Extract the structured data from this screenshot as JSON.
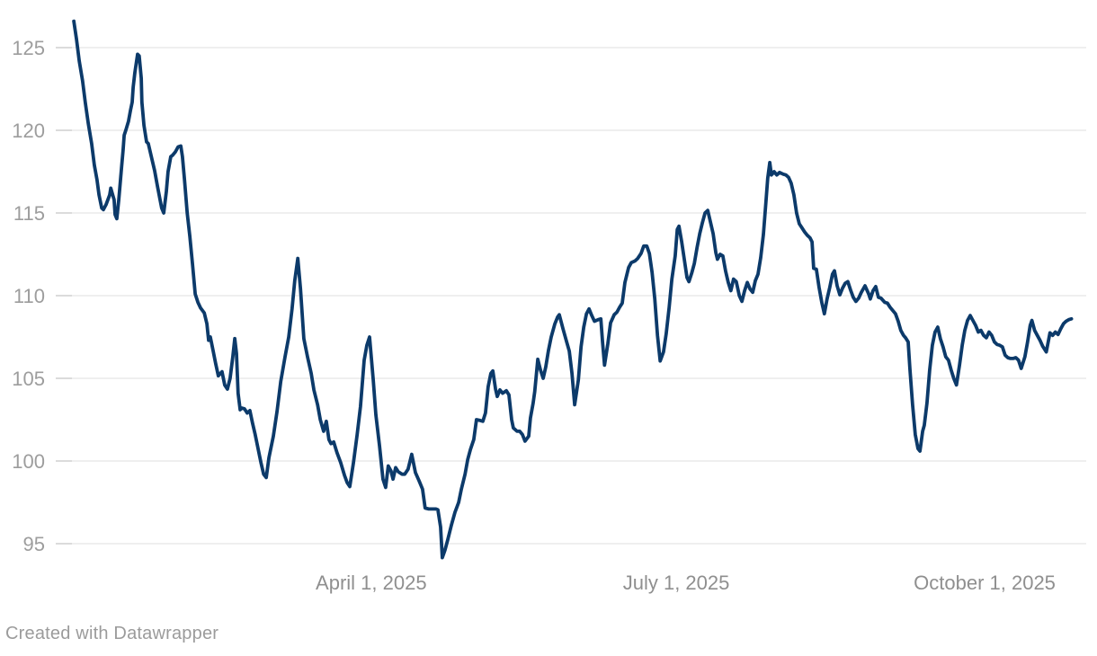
{
  "page": {
    "background": "#ffffff"
  },
  "attribution": {
    "text": "Created with Datawrapper"
  },
  "chart_data": {
    "type": "line",
    "title": "",
    "xlabel": "",
    "ylabel": "",
    "x_unit": "days_since_2025-01-01",
    "x_range_days": [
      0,
      301
    ],
    "ylim": [
      92.2,
      127.5
    ],
    "grid": true,
    "legend": "none",
    "line_color": "#0c3a6a",
    "grid_color": "#e5e5e5",
    "tick_color": "#c9c9c9",
    "y_label_color": "#9d9d9d",
    "x_label_color": "#8f8f8f",
    "y_ticks": [
      95,
      100,
      105,
      110,
      115,
      120,
      125
    ],
    "x_ticks": [
      {
        "d": 90,
        "label": "April 1, 2025"
      },
      {
        "d": 181,
        "label": "July 1, 2025"
      },
      {
        "d": 273,
        "label": "October 1, 2025"
      }
    ],
    "points": [
      [
        1.3,
        126.6
      ],
      [
        2.1,
        125.5
      ],
      [
        2.9,
        124.2
      ],
      [
        3.9,
        123.0
      ],
      [
        4.7,
        121.7
      ],
      [
        5.6,
        120.4
      ],
      [
        6.6,
        119.2
      ],
      [
        7.4,
        117.9
      ],
      [
        8.2,
        117.0
      ],
      [
        8.8,
        116.1
      ],
      [
        9.6,
        115.3
      ],
      [
        10.1,
        115.2
      ],
      [
        10.9,
        115.5
      ],
      [
        12.0,
        116.1
      ],
      [
        12.3,
        116.5
      ],
      [
        13.3,
        115.8
      ],
      [
        13.6,
        114.9
      ],
      [
        14.1,
        114.65
      ],
      [
        14.7,
        115.8
      ],
      [
        15.5,
        117.7
      ],
      [
        16.0,
        118.8
      ],
      [
        16.3,
        119.7
      ],
      [
        16.8,
        120.0
      ],
      [
        17.6,
        120.55
      ],
      [
        18.2,
        121.2
      ],
      [
        18.7,
        121.7
      ],
      [
        19.0,
        122.6
      ],
      [
        19.5,
        123.5
      ],
      [
        20.3,
        124.6
      ],
      [
        20.8,
        124.5
      ],
      [
        21.4,
        123.15
      ],
      [
        21.6,
        121.7
      ],
      [
        22.2,
        120.3
      ],
      [
        23.0,
        119.3
      ],
      [
        23.5,
        119.2
      ],
      [
        24.3,
        118.5
      ],
      [
        25.4,
        117.55
      ],
      [
        26.2,
        116.65
      ],
      [
        27.0,
        115.8
      ],
      [
        27.5,
        115.3
      ],
      [
        28.1,
        115.0
      ],
      [
        28.9,
        116.3
      ],
      [
        29.4,
        117.5
      ],
      [
        30.2,
        118.4
      ],
      [
        30.8,
        118.5
      ],
      [
        31.6,
        118.7
      ],
      [
        32.4,
        119.0
      ],
      [
        33.2,
        119.05
      ],
      [
        33.7,
        118.4
      ],
      [
        34.3,
        117.0
      ],
      [
        35.1,
        115.0
      ],
      [
        35.9,
        113.6
      ],
      [
        36.7,
        111.9
      ],
      [
        37.5,
        110.1
      ],
      [
        38.3,
        109.6
      ],
      [
        39.1,
        109.25
      ],
      [
        40.2,
        108.95
      ],
      [
        41.0,
        108.3
      ],
      [
        41.5,
        107.3
      ],
      [
        42.0,
        107.5
      ],
      [
        42.8,
        106.7
      ],
      [
        43.6,
        105.9
      ],
      [
        44.4,
        105.15
      ],
      [
        45.5,
        105.4
      ],
      [
        46.3,
        104.6
      ],
      [
        47.1,
        104.35
      ],
      [
        47.9,
        105.0
      ],
      [
        48.7,
        106.3
      ],
      [
        49.3,
        107.4
      ],
      [
        49.8,
        106.5
      ],
      [
        50.3,
        104.1
      ],
      [
        50.9,
        103.1
      ],
      [
        51.4,
        103.2
      ],
      [
        52.2,
        103.15
      ],
      [
        53.0,
        102.9
      ],
      [
        53.8,
        103.05
      ],
      [
        54.6,
        102.3
      ],
      [
        55.4,
        101.6
      ],
      [
        56.2,
        100.8
      ],
      [
        57.1,
        99.9
      ],
      [
        57.9,
        99.2
      ],
      [
        58.7,
        99.0
      ],
      [
        59.5,
        100.2
      ],
      [
        60.8,
        101.5
      ],
      [
        61.9,
        103.0
      ],
      [
        63.0,
        104.8
      ],
      [
        64.3,
        106.3
      ],
      [
        65.4,
        107.5
      ],
      [
        66.4,
        109.2
      ],
      [
        67.2,
        110.9
      ],
      [
        68.1,
        112.25
      ],
      [
        68.9,
        110.4
      ],
      [
        69.9,
        107.4
      ],
      [
        71.0,
        106.3
      ],
      [
        72.1,
        105.3
      ],
      [
        72.9,
        104.3
      ],
      [
        74.0,
        103.4
      ],
      [
        74.8,
        102.5
      ],
      [
        75.8,
        101.8
      ],
      [
        76.6,
        102.4
      ],
      [
        77.4,
        101.3
      ],
      [
        78.0,
        101.05
      ],
      [
        78.8,
        101.15
      ],
      [
        79.8,
        100.5
      ],
      [
        80.9,
        99.9
      ],
      [
        82.0,
        99.15
      ],
      [
        82.8,
        98.7
      ],
      [
        83.6,
        98.45
      ],
      [
        84.7,
        99.9
      ],
      [
        85.8,
        101.6
      ],
      [
        86.8,
        103.3
      ],
      [
        87.9,
        106.1
      ],
      [
        88.7,
        107.0
      ],
      [
        89.5,
        107.5
      ],
      [
        90.6,
        104.9
      ],
      [
        91.4,
        102.8
      ],
      [
        92.5,
        100.9
      ],
      [
        93.5,
        98.9
      ],
      [
        94.3,
        98.4
      ],
      [
        95.1,
        99.7
      ],
      [
        95.9,
        99.4
      ],
      [
        96.5,
        98.9
      ],
      [
        97.3,
        99.6
      ],
      [
        98.1,
        99.35
      ],
      [
        99.2,
        99.2
      ],
      [
        100.0,
        99.2
      ],
      [
        101.0,
        99.5
      ],
      [
        102.1,
        100.4
      ],
      [
        103.2,
        99.3
      ],
      [
        104.3,
        98.8
      ],
      [
        105.3,
        98.3
      ],
      [
        106.1,
        97.15
      ],
      [
        107.2,
        97.1
      ],
      [
        108.3,
        97.1
      ],
      [
        109.3,
        97.1
      ],
      [
        109.9,
        97.05
      ],
      [
        110.7,
        96.0
      ],
      [
        111.2,
        94.15
      ],
      [
        112.0,
        94.6
      ],
      [
        112.8,
        95.2
      ],
      [
        113.9,
        96.1
      ],
      [
        115.0,
        96.9
      ],
      [
        116.1,
        97.5
      ],
      [
        116.9,
        98.3
      ],
      [
        118.0,
        99.2
      ],
      [
        118.8,
        100.1
      ],
      [
        119.6,
        100.7
      ],
      [
        120.6,
        101.3
      ],
      [
        121.4,
        102.5
      ],
      [
        122.5,
        102.45
      ],
      [
        123.3,
        102.4
      ],
      [
        124.1,
        102.9
      ],
      [
        124.9,
        104.5
      ],
      [
        125.7,
        105.3
      ],
      [
        126.3,
        105.45
      ],
      [
        127.1,
        104.35
      ],
      [
        127.6,
        103.9
      ],
      [
        128.4,
        104.3
      ],
      [
        129.2,
        104.1
      ],
      [
        130.3,
        104.25
      ],
      [
        131.1,
        104.0
      ],
      [
        131.9,
        102.5
      ],
      [
        132.4,
        102.0
      ],
      [
        133.5,
        101.8
      ],
      [
        134.3,
        101.8
      ],
      [
        135.1,
        101.6
      ],
      [
        135.9,
        101.2
      ],
      [
        137.0,
        101.5
      ],
      [
        137.5,
        102.6
      ],
      [
        138.3,
        103.5
      ],
      [
        138.8,
        104.2
      ],
      [
        139.7,
        106.15
      ],
      [
        140.5,
        105.5
      ],
      [
        141.3,
        105.0
      ],
      [
        142.1,
        105.7
      ],
      [
        142.9,
        106.7
      ],
      [
        143.7,
        107.5
      ],
      [
        144.8,
        108.3
      ],
      [
        145.6,
        108.7
      ],
      [
        146.1,
        108.85
      ],
      [
        147.2,
        108.0
      ],
      [
        148.3,
        107.2
      ],
      [
        149.1,
        106.65
      ],
      [
        149.9,
        105.3
      ],
      [
        150.7,
        103.4
      ],
      [
        151.8,
        104.9
      ],
      [
        152.6,
        106.9
      ],
      [
        153.4,
        108.1
      ],
      [
        154.2,
        108.9
      ],
      [
        155.0,
        109.2
      ],
      [
        155.8,
        108.8
      ],
      [
        156.6,
        108.45
      ],
      [
        157.7,
        108.55
      ],
      [
        158.5,
        108.6
      ],
      [
        159.0,
        107.2
      ],
      [
        159.6,
        105.8
      ],
      [
        160.6,
        107.1
      ],
      [
        161.4,
        108.35
      ],
      [
        162.5,
        108.85
      ],
      [
        163.3,
        109.0
      ],
      [
        164.1,
        109.3
      ],
      [
        164.9,
        109.55
      ],
      [
        165.7,
        110.8
      ],
      [
        166.8,
        111.7
      ],
      [
        167.6,
        112.0
      ],
      [
        168.7,
        112.1
      ],
      [
        169.5,
        112.25
      ],
      [
        170.5,
        112.55
      ],
      [
        171.3,
        113.0
      ],
      [
        172.2,
        113.0
      ],
      [
        173.0,
        112.55
      ],
      [
        173.8,
        111.4
      ],
      [
        174.6,
        109.8
      ],
      [
        175.4,
        107.6
      ],
      [
        176.2,
        106.05
      ],
      [
        177.2,
        106.6
      ],
      [
        178.0,
        107.7
      ],
      [
        178.9,
        109.3
      ],
      [
        179.7,
        111.0
      ],
      [
        180.7,
        112.4
      ],
      [
        181.3,
        114.0
      ],
      [
        181.8,
        114.2
      ],
      [
        182.6,
        113.3
      ],
      [
        183.4,
        112.2
      ],
      [
        184.2,
        111.1
      ],
      [
        184.8,
        110.85
      ],
      [
        185.6,
        111.35
      ],
      [
        186.4,
        111.95
      ],
      [
        187.2,
        112.9
      ],
      [
        188.0,
        113.75
      ],
      [
        188.8,
        114.4
      ],
      [
        189.6,
        115.0
      ],
      [
        190.4,
        115.15
      ],
      [
        191.2,
        114.45
      ],
      [
        192.0,
        113.75
      ],
      [
        192.8,
        112.6
      ],
      [
        193.3,
        112.2
      ],
      [
        194.1,
        112.5
      ],
      [
        194.9,
        112.4
      ],
      [
        195.7,
        111.5
      ],
      [
        196.5,
        110.8
      ],
      [
        197.3,
        110.3
      ],
      [
        198.1,
        111.0
      ],
      [
        198.9,
        110.85
      ],
      [
        199.8,
        110.0
      ],
      [
        200.6,
        109.65
      ],
      [
        201.4,
        110.3
      ],
      [
        202.2,
        110.8
      ],
      [
        203.0,
        110.4
      ],
      [
        203.8,
        110.2
      ],
      [
        204.6,
        110.9
      ],
      [
        205.4,
        111.3
      ],
      [
        206.2,
        112.3
      ],
      [
        207.0,
        113.7
      ],
      [
        207.8,
        115.8
      ],
      [
        208.3,
        117.1
      ],
      [
        208.9,
        118.05
      ],
      [
        209.4,
        117.3
      ],
      [
        210.2,
        117.5
      ],
      [
        211.0,
        117.3
      ],
      [
        211.8,
        117.45
      ],
      [
        212.9,
        117.35
      ],
      [
        213.7,
        117.3
      ],
      [
        214.5,
        117.15
      ],
      [
        215.3,
        116.8
      ],
      [
        216.1,
        116.1
      ],
      [
        216.9,
        115.0
      ],
      [
        217.7,
        114.35
      ],
      [
        218.5,
        114.1
      ],
      [
        219.3,
        113.85
      ],
      [
        220.1,
        113.65
      ],
      [
        220.9,
        113.5
      ],
      [
        221.5,
        113.25
      ],
      [
        222.0,
        111.65
      ],
      [
        222.8,
        111.6
      ],
      [
        223.6,
        110.5
      ],
      [
        224.4,
        109.6
      ],
      [
        225.2,
        108.9
      ],
      [
        226.0,
        109.8
      ],
      [
        226.8,
        110.5
      ],
      [
        227.6,
        111.3
      ],
      [
        228.2,
        111.5
      ],
      [
        229.0,
        110.6
      ],
      [
        229.8,
        110.05
      ],
      [
        230.6,
        110.45
      ],
      [
        231.4,
        110.75
      ],
      [
        232.2,
        110.85
      ],
      [
        233.0,
        110.35
      ],
      [
        233.8,
        109.9
      ],
      [
        234.6,
        109.65
      ],
      [
        235.4,
        109.85
      ],
      [
        236.2,
        110.2
      ],
      [
        237.3,
        110.6
      ],
      [
        238.4,
        110.1
      ],
      [
        238.9,
        109.8
      ],
      [
        239.7,
        110.3
      ],
      [
        240.5,
        110.55
      ],
      [
        241.3,
        109.9
      ],
      [
        242.1,
        109.85
      ],
      [
        243.2,
        109.6
      ],
      [
        244.0,
        109.55
      ],
      [
        244.8,
        109.3
      ],
      [
        245.6,
        109.1
      ],
      [
        246.4,
        108.9
      ],
      [
        247.2,
        108.45
      ],
      [
        248.0,
        107.9
      ],
      [
        248.8,
        107.6
      ],
      [
        249.4,
        107.45
      ],
      [
        250.2,
        107.2
      ],
      [
        250.7,
        105.6
      ],
      [
        251.5,
        103.4
      ],
      [
        252.3,
        101.6
      ],
      [
        253.1,
        100.75
      ],
      [
        253.7,
        100.6
      ],
      [
        254.5,
        101.8
      ],
      [
        255.0,
        102.15
      ],
      [
        255.8,
        103.5
      ],
      [
        256.6,
        105.5
      ],
      [
        257.4,
        107.0
      ],
      [
        258.2,
        107.8
      ],
      [
        259.0,
        108.1
      ],
      [
        259.8,
        107.4
      ],
      [
        260.6,
        106.9
      ],
      [
        261.4,
        106.3
      ],
      [
        262.2,
        106.1
      ],
      [
        263.0,
        105.5
      ],
      [
        263.8,
        105.0
      ],
      [
        264.6,
        104.6
      ],
      [
        265.5,
        105.8
      ],
      [
        266.3,
        107.0
      ],
      [
        267.1,
        107.9
      ],
      [
        267.9,
        108.5
      ],
      [
        268.7,
        108.8
      ],
      [
        269.5,
        108.5
      ],
      [
        270.3,
        108.2
      ],
      [
        271.1,
        107.8
      ],
      [
        271.9,
        107.9
      ],
      [
        272.7,
        107.6
      ],
      [
        273.5,
        107.45
      ],
      [
        274.3,
        107.8
      ],
      [
        275.1,
        107.6
      ],
      [
        275.9,
        107.2
      ],
      [
        276.7,
        107.05
      ],
      [
        277.5,
        107.0
      ],
      [
        278.3,
        106.9
      ],
      [
        279.1,
        106.4
      ],
      [
        279.9,
        106.25
      ],
      [
        280.7,
        106.2
      ],
      [
        281.5,
        106.2
      ],
      [
        282.3,
        106.25
      ],
      [
        283.1,
        106.1
      ],
      [
        283.9,
        105.6
      ],
      [
        285.0,
        106.3
      ],
      [
        285.8,
        107.2
      ],
      [
        286.6,
        108.2
      ],
      [
        287.1,
        108.5
      ],
      [
        287.9,
        107.9
      ],
      [
        288.7,
        107.6
      ],
      [
        289.5,
        107.3
      ],
      [
        290.3,
        106.95
      ],
      [
        291.4,
        106.6
      ],
      [
        292.5,
        107.75
      ],
      [
        293.3,
        107.6
      ],
      [
        294.1,
        107.8
      ],
      [
        294.9,
        107.65
      ],
      [
        295.7,
        108.0
      ],
      [
        296.5,
        108.3
      ],
      [
        297.3,
        108.45
      ],
      [
        298.1,
        108.55
      ],
      [
        298.9,
        108.6
      ]
    ]
  }
}
